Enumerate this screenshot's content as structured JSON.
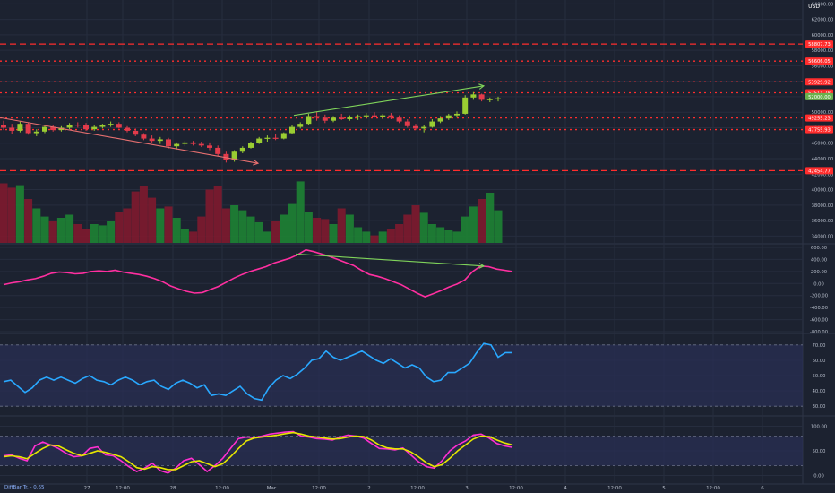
{
  "chart_data": {
    "type": "candlestick-multi-panel",
    "title": "",
    "currency_label": "USD",
    "price_axis": {
      "ticks": [
        "64000.00",
        "62000.00",
        "60000.00",
        "58000.00",
        "56000.00",
        "54000.00",
        "52000.00",
        "50000.00",
        "48000.00",
        "46000.00",
        "44000.00",
        "42000.00",
        "40000.00",
        "38000.00",
        "36000.00",
        "34000.00"
      ],
      "range": [
        33000,
        64500
      ],
      "current_price": "52000.00"
    },
    "horizontal_levels": [
      {
        "value": "58807.73",
        "color": "#ff2d2d",
        "style": "dashed"
      },
      {
        "value": "56606.05",
        "color": "#ff2d2d",
        "style": "dotted"
      },
      {
        "value": "53929.92",
        "color": "#ff2d2d",
        "style": "dotted"
      },
      {
        "value": "52511.78",
        "color": "#ff2d2d",
        "style": "dotted"
      },
      {
        "value": "49255.23",
        "color": "#ff2d2d",
        "style": "dotted"
      },
      {
        "value": "47755.93",
        "color": "#ff2d2d",
        "style": "dotted"
      },
      {
        "value": "42454.77",
        "color": "#ff2d2d",
        "style": "dashed"
      }
    ],
    "candles_ohlc": [
      [
        48400,
        48900,
        47700,
        48000
      ],
      [
        48000,
        48500,
        47200,
        47600
      ],
      [
        47600,
        48800,
        47400,
        48500
      ],
      [
        48500,
        48700,
        47100,
        47300
      ],
      [
        47300,
        47800,
        46900,
        47500
      ],
      [
        47500,
        48300,
        47300,
        48100
      ],
      [
        48100,
        48400,
        47500,
        47700
      ],
      [
        47700,
        48200,
        47500,
        48000
      ],
      [
        48000,
        48600,
        47800,
        48400
      ],
      [
        48400,
        48700,
        48000,
        48300
      ],
      [
        48300,
        48600,
        47600,
        47800
      ],
      [
        47800,
        48300,
        47600,
        48100
      ],
      [
        48100,
        48500,
        47900,
        48300
      ],
      [
        48300,
        48800,
        48100,
        48500
      ],
      [
        48500,
        48700,
        47900,
        48000
      ],
      [
        48000,
        48200,
        47400,
        47600
      ],
      [
        47600,
        47900,
        46900,
        47100
      ],
      [
        47100,
        47300,
        46400,
        46600
      ],
      [
        46600,
        47000,
        46100,
        46300
      ],
      [
        46300,
        46800,
        45900,
        46500
      ],
      [
        46500,
        46700,
        45300,
        45600
      ],
      [
        45600,
        46100,
        45200,
        45900
      ],
      [
        45900,
        46300,
        45600,
        46100
      ],
      [
        46100,
        46300,
        45700,
        45900
      ],
      [
        45900,
        46200,
        45500,
        45700
      ],
      [
        45700,
        46100,
        45100,
        45400
      ],
      [
        45400,
        45700,
        44300,
        44600
      ],
      [
        44600,
        44900,
        43500,
        43800
      ],
      [
        43800,
        45100,
        43600,
        44900
      ],
      [
        44900,
        45600,
        44700,
        45400
      ],
      [
        45400,
        46200,
        45300,
        46000
      ],
      [
        46000,
        46800,
        45900,
        46600
      ],
      [
        46600,
        47000,
        46200,
        46700
      ],
      [
        46700,
        47200,
        46400,
        46600
      ],
      [
        46600,
        47400,
        46500,
        47300
      ],
      [
        47300,
        48300,
        47200,
        48100
      ],
      [
        48100,
        48700,
        47900,
        48500
      ],
      [
        48500,
        49800,
        48400,
        49500
      ],
      [
        49500,
        50100,
        48900,
        49300
      ],
      [
        49300,
        49700,
        48600,
        48900
      ],
      [
        48900,
        49500,
        48700,
        49300
      ],
      [
        49300,
        49800,
        49000,
        49100
      ],
      [
        49100,
        49600,
        48900,
        49400
      ],
      [
        49400,
        49700,
        49000,
        49500
      ],
      [
        49500,
        49900,
        49200,
        49600
      ],
      [
        49600,
        50000,
        49300,
        49400
      ],
      [
        49400,
        49800,
        49100,
        49600
      ],
      [
        49600,
        49900,
        49100,
        49300
      ],
      [
        49300,
        49600,
        48600,
        48800
      ],
      [
        48800,
        49100,
        48000,
        48200
      ],
      [
        48200,
        48500,
        47700,
        47900
      ],
      [
        47900,
        48300,
        47400,
        48100
      ],
      [
        48100,
        49100,
        48000,
        48800
      ],
      [
        48800,
        49500,
        48600,
        49200
      ],
      [
        49200,
        49800,
        49000,
        49600
      ],
      [
        49600,
        50100,
        49300,
        49800
      ],
      [
        49800,
        52200,
        49700,
        51900
      ],
      [
        51900,
        52600,
        51600,
        52300
      ],
      [
        52300,
        52400,
        51400,
        51600
      ],
      [
        51600,
        51900,
        51300,
        51700
      ],
      [
        51700,
        52000,
        51400,
        51800
      ]
    ],
    "volume_relative": [
      0.95,
      0.88,
      0.92,
      0.7,
      0.55,
      0.42,
      0.35,
      0.4,
      0.45,
      0.3,
      0.22,
      0.3,
      0.28,
      0.35,
      0.5,
      0.55,
      0.82,
      0.9,
      0.72,
      0.55,
      0.58,
      0.4,
      0.22,
      0.18,
      0.42,
      0.85,
      0.9,
      0.55,
      0.6,
      0.52,
      0.42,
      0.33,
      0.18,
      0.35,
      0.45,
      0.62,
      0.98,
      0.5,
      0.4,
      0.38,
      0.3,
      0.55,
      0.45,
      0.25,
      0.18,
      0.12,
      0.18,
      0.22,
      0.3,
      0.45,
      0.6,
      0.48,
      0.3,
      0.25,
      0.2,
      0.18,
      0.42,
      0.58,
      0.7,
      0.8,
      0.52
    ],
    "volume_up_color": "#1e7e34",
    "volume_down_color": "#7a1a2e",
    "panel2": {
      "ticks": [
        "600.00",
        "400.00",
        "200.00",
        "0.00",
        "-200.00",
        "-400.00",
        "-600.00",
        "-800.00"
      ],
      "range": [
        -800,
        600
      ],
      "series": [
        -20,
        10,
        30,
        60,
        80,
        120,
        170,
        190,
        180,
        160,
        170,
        200,
        210,
        200,
        220,
        190,
        170,
        150,
        120,
        80,
        30,
        -40,
        -90,
        -130,
        -160,
        -150,
        -100,
        -50,
        20,
        90,
        150,
        200,
        240,
        280,
        340,
        380,
        420,
        480,
        560,
        530,
        490,
        450,
        400,
        350,
        300,
        220,
        150,
        120,
        80,
        30,
        -20,
        -90,
        -160,
        -220,
        -170,
        -120,
        -60,
        -10,
        60,
        200,
        290,
        280,
        240,
        220,
        200
      ]
    },
    "panel3": {
      "ticks": [
        "70.00",
        "60.00",
        "50.00",
        "40.00",
        "30.00"
      ],
      "range": [
        26,
        74
      ],
      "band": [
        30,
        70
      ],
      "series": [
        46,
        47,
        43,
        39,
        42,
        47,
        49,
        47,
        49,
        47,
        45,
        48,
        50,
        47,
        46,
        44,
        47,
        49,
        47,
        44,
        46,
        47,
        43,
        41,
        45,
        47,
        45,
        42,
        44,
        37,
        38,
        37,
        40,
        43,
        38,
        35,
        34,
        42,
        47,
        50,
        48,
        51,
        55,
        60,
        61,
        66,
        62,
        60,
        62,
        64,
        66,
        63,
        60,
        58,
        61,
        58,
        55,
        57,
        55,
        49,
        46,
        47,
        52,
        52,
        55,
        58,
        65,
        71,
        70,
        62,
        65,
        65
      ]
    },
    "panel4": {
      "ticks": [
        "100.00",
        "50.00",
        "0.00"
      ],
      "range": [
        -10,
        110
      ],
      "band": [
        20,
        80
      ],
      "series_k": [
        40,
        42,
        35,
        30,
        60,
        68,
        62,
        55,
        45,
        38,
        40,
        55,
        58,
        42,
        40,
        30,
        18,
        8,
        15,
        25,
        10,
        5,
        15,
        30,
        35,
        22,
        8,
        20,
        35,
        55,
        75,
        78,
        77,
        80,
        84,
        86,
        88,
        89,
        80,
        78,
        75,
        74,
        72,
        78,
        82,
        80,
        76,
        65,
        55,
        54,
        52,
        56,
        42,
        28,
        18,
        15,
        30,
        50,
        62,
        70,
        82,
        84,
        76,
        65,
        60,
        57
      ],
      "series_d": [
        38,
        40,
        38,
        34,
        45,
        55,
        62,
        60,
        52,
        45,
        40,
        45,
        50,
        47,
        43,
        38,
        28,
        16,
        13,
        18,
        16,
        12,
        12,
        20,
        28,
        30,
        24,
        18,
        24,
        38,
        55,
        70,
        76,
        78,
        80,
        82,
        85,
        87,
        84,
        80,
        78,
        76,
        74,
        75,
        78,
        80,
        79,
        72,
        62,
        56,
        54,
        54,
        48,
        38,
        26,
        18,
        22,
        35,
        50,
        62,
        74,
        80,
        79,
        72,
        66,
        62
      ]
    },
    "time_ticks": [
      "27",
      "12:00",
      "28",
      "12:00",
      "Mar",
      "12:00",
      "2",
      "12:00",
      "3",
      "12:00",
      "4",
      "12:00",
      "5",
      "12:00",
      "6"
    ],
    "corner_label": "DiffBar Tr. - 0.65",
    "colors": {
      "candle_up": "#9acd32",
      "candle_down": "#e23b4b",
      "macd_line": "#ff2fa0",
      "rsi_line": "#29a8ff",
      "stoch_k": "#ff2fd0",
      "stoch_d": "#e6e600",
      "trendline": "#7fd35a",
      "trendline_down": "#e87070",
      "level": "#ff2d2d"
    }
  }
}
